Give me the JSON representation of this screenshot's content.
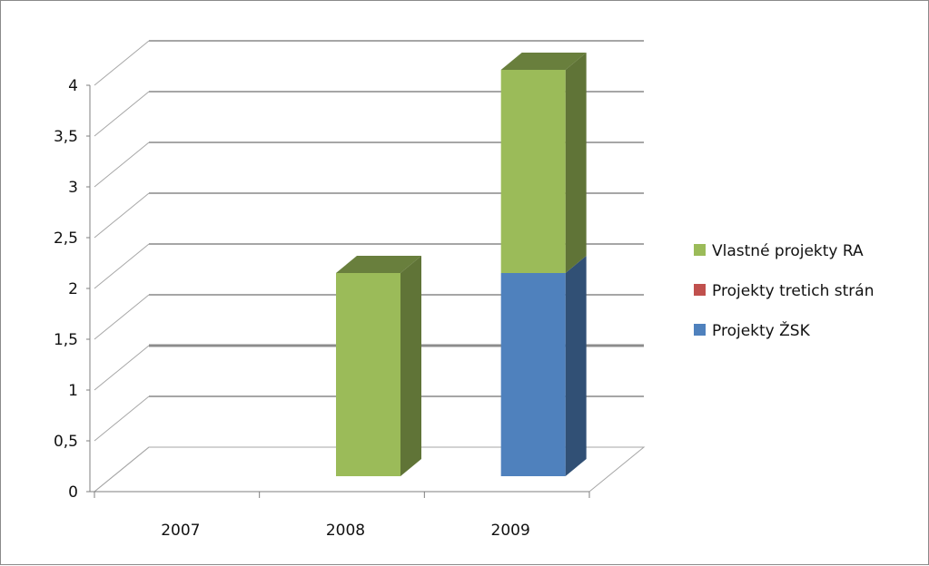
{
  "chart_data": {
    "type": "bar",
    "stacked": true,
    "three_d": true,
    "categories": [
      "2007",
      "2008",
      "2009"
    ],
    "series": [
      {
        "name": "Projekty ŽSK",
        "values": [
          0,
          0,
          2
        ]
      },
      {
        "name": "Projekty tretich strán",
        "values": [
          0,
          0,
          0
        ]
      },
      {
        "name": "Vlastné projekty RA",
        "values": [
          0,
          2,
          2
        ]
      }
    ],
    "legend_order": [
      "Vlastné projekty RA",
      "Projekty tretich strán",
      "Projekty ŽSK"
    ],
    "colors": {
      "Projekty ŽSK": "#4f81bd",
      "Projekty tretich strán": "#c0504d",
      "Vlastné projekty RA": "#9bbb59"
    },
    "y_ticks": [
      "0",
      "0,5",
      "1",
      "1,5",
      "2",
      "2,5",
      "3",
      "3,5",
      "4"
    ],
    "ylim": [
      0,
      4
    ],
    "grid": true,
    "legend_position": "right"
  }
}
